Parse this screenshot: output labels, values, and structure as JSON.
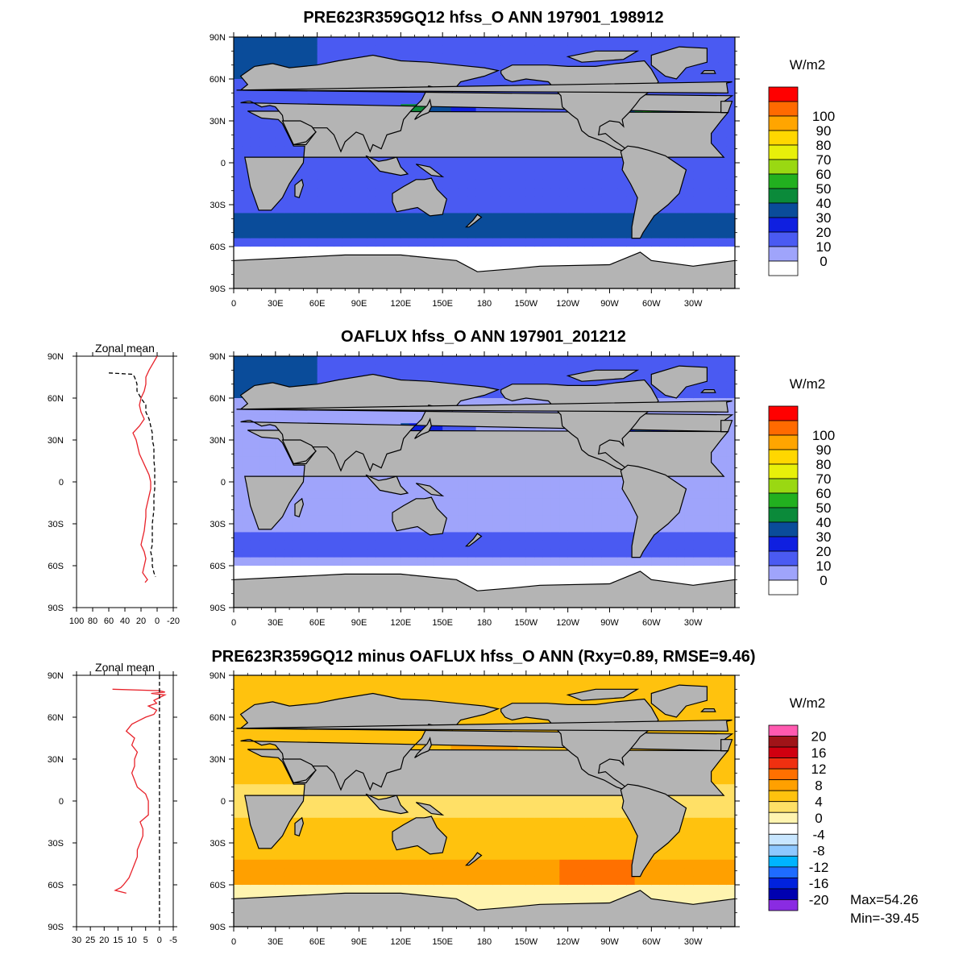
{
  "chart_data": [
    {
      "type": "heatmap",
      "title": "PRE623R359GQ12 hfss_O ANN 197901_198912",
      "lat_ticks": [
        "90N",
        "60N",
        "30N",
        "0",
        "30S",
        "60S",
        "90S"
      ],
      "lon_ticks": [
        "0",
        "30E",
        "60E",
        "90E",
        "120E",
        "150E",
        "180",
        "150W",
        "120W",
        "90W",
        "60W",
        "30W"
      ],
      "colorbar": {
        "units": "W/m2",
        "levels": [
          "0",
          "10",
          "20",
          "30",
          "40",
          "50",
          "60",
          "70",
          "80",
          "90",
          "100"
        ],
        "colors": [
          "#ffffff",
          "#9fa4fb",
          "#4a5af2",
          "#0f1fe0",
          "#0a4c9a",
          "#0b8a3a",
          "#22b01f",
          "#9ad812",
          "#e8f00a",
          "#ffd700",
          "#ffa500",
          "#ff6a00",
          "#ff0000"
        ]
      },
      "zonal_mean": null
    },
    {
      "type": "heatmap",
      "title": "OAFLUX hfss_O ANN 197901_201212",
      "lat_ticks": [
        "90N",
        "60N",
        "30N",
        "0",
        "30S",
        "60S",
        "90S"
      ],
      "lon_ticks": [
        "0",
        "30E",
        "60E",
        "90E",
        "120E",
        "150E",
        "180",
        "150W",
        "120W",
        "90W",
        "60W",
        "30W"
      ],
      "colorbar": {
        "units": "W/m2",
        "levels": [
          "0",
          "10",
          "20",
          "30",
          "40",
          "50",
          "60",
          "70",
          "80",
          "90",
          "100"
        ],
        "colors": [
          "#ffffff",
          "#9fa4fb",
          "#4a5af2",
          "#0f1fe0",
          "#0a4c9a",
          "#0b8a3a",
          "#22b01f",
          "#9ad812",
          "#e8f00a",
          "#ffd700",
          "#ffa500",
          "#ff6a00",
          "#ff0000"
        ]
      },
      "zonal_mean": {
        "title": "Zonal mean",
        "x_ticks": [
          "100",
          "80",
          "60",
          "40",
          "20",
          "0",
          "-20"
        ],
        "y_ticks": [
          "90N",
          "60N",
          "30N",
          "0",
          "30S",
          "60S",
          "90S"
        ],
        "xlim": [
          100,
          -20
        ],
        "series": [
          {
            "style": "solid",
            "color": "#e8222a",
            "lat": [
              90,
              85,
              80,
              75,
              70,
              65,
              60,
              55,
              50,
              45,
              40,
              35,
              30,
              25,
              20,
              15,
              10,
              5,
              0,
              -5,
              -10,
              -15,
              -20,
              -25,
              -30,
              -35,
              -40,
              -45,
              -50,
              -55,
              -60,
              -65,
              -70,
              -72
            ],
            "values": [
              0,
              5,
              10,
              14,
              14,
              16,
              20,
              22,
              20,
              16,
              22,
              30,
              26,
              24,
              22,
              18,
              14,
              10,
              8,
              8,
              10,
              12,
              14,
              14,
              15,
              16,
              18,
              20,
              16,
              14,
              16,
              18,
              12,
              15
            ]
          },
          {
            "style": "dashed",
            "color": "#000000",
            "lat": [
              78,
              77,
              75,
              72,
              70,
              65,
              60,
              55,
              50,
              45,
              40,
              35,
              30,
              25,
              20,
              15,
              10,
              5,
              0,
              -5,
              -10,
              -15,
              -20,
              -25,
              -30,
              -35,
              -40,
              -45,
              -50,
              -55,
              -60,
              -65,
              -68
            ],
            "values": [
              60,
              30,
              28,
              26,
              25,
              25,
              20,
              14,
              14,
              10,
              8,
              6,
              6,
              4,
              4,
              4,
              3,
              3,
              3,
              3,
              4,
              4,
              4,
              5,
              6,
              6,
              6,
              6,
              8,
              6,
              6,
              4,
              2
            ]
          }
        ]
      }
    },
    {
      "type": "heatmap",
      "title": "PRE623R359GQ12 minus OAFLUX hfss_O ANN (Rxy=0.89, RMSE=9.46)",
      "lat_ticks": [
        "90N",
        "60N",
        "30N",
        "0",
        "30S",
        "60S",
        "90S"
      ],
      "lon_ticks": [
        "0",
        "30E",
        "60E",
        "90E",
        "120E",
        "150E",
        "180",
        "150W",
        "120W",
        "90W",
        "60W",
        "30W"
      ],
      "colorbar": {
        "units": "W/m2",
        "levels": [
          "-20",
          "-16",
          "-12",
          "-8",
          "-4",
          "0",
          "4",
          "8",
          "12",
          "16",
          "20"
        ],
        "colors": [
          "#8a2be2",
          "#0000b0",
          "#0022dd",
          "#1e6cff",
          "#00b4ff",
          "#8ec8ff",
          "#c8e6ff",
          "#ffffff",
          "#fff4b0",
          "#ffe066",
          "#ffc20e",
          "#ffa000",
          "#ff7000",
          "#f03010",
          "#d00010",
          "#a01418",
          "#ff5ab0"
        ]
      },
      "stats": {
        "max": "Max=54.26",
        "min": "Min=-39.45"
      },
      "zonal_mean": {
        "title": "Zonal mean",
        "x_ticks": [
          "30",
          "25",
          "20",
          "15",
          "10",
          "5",
          "0",
          "-5"
        ],
        "y_ticks": [
          "90N",
          "60N",
          "30N",
          "0",
          "30S",
          "60S",
          "90S"
        ],
        "xlim": [
          30,
          -5
        ],
        "series": [
          {
            "style": "solid",
            "color": "#e8222a",
            "lat": [
              80,
              79,
              78,
              77,
              76,
              75,
              72,
              70,
              68,
              65,
              62,
              60,
              57,
              55,
              50,
              45,
              40,
              35,
              30,
              25,
              20,
              15,
              10,
              5,
              0,
              -5,
              -10,
              -15,
              -20,
              -25,
              -30,
              -35,
              -40,
              -45,
              -50,
              -55,
              -60,
              -62,
              -64,
              -66
            ],
            "values": [
              17,
              0,
              -2,
              3,
              -2,
              -1,
              2,
              1,
              4,
              1,
              2,
              5,
              8,
              10,
              12,
              9,
              10,
              8,
              9,
              9,
              10,
              9,
              8,
              5,
              4,
              4,
              4,
              7,
              6,
              6,
              7,
              8,
              8,
              9,
              10,
              11,
              13,
              14,
              16,
              12
            ]
          },
          {
            "style": "dashed",
            "color": "#000000",
            "lat": [
              90,
              -90
            ],
            "values": [
              0,
              0
            ]
          }
        ]
      }
    }
  ]
}
